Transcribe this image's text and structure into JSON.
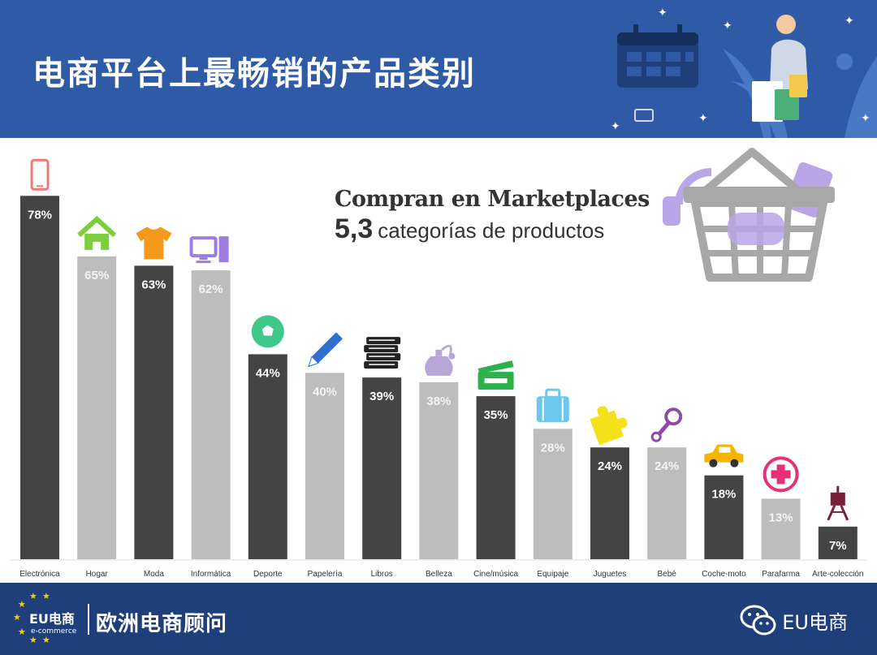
{
  "header": {
    "title": "电商平台上最畅销的产品类别"
  },
  "subtitle": {
    "line1": "Compran en Marketplaces",
    "number": "5,3",
    "rest": "categorías de productos"
  },
  "chart_data": {
    "type": "bar",
    "title": "",
    "xlabel": "",
    "ylabel": "",
    "ylim": [
      0,
      100
    ],
    "grid": false,
    "categories": [
      "Electrónica",
      "Hogar",
      "Moda",
      "Informática",
      "Deporte",
      "Papelería",
      "Libros",
      "Belleza",
      "Cine/música",
      "Equipaje",
      "Juguetes",
      "Bebé",
      "Coche-moto",
      "Parafarma",
      "Arte-colección"
    ],
    "values": [
      78,
      65,
      63,
      62,
      44,
      40,
      39,
      38,
      35,
      28,
      24,
      24,
      18,
      13,
      7
    ],
    "value_labels": [
      "78%",
      "65%",
      "63%",
      "62%",
      "44%",
      "40%",
      "39%",
      "38%",
      "35%",
      "28%",
      "24%",
      "24%",
      "18%",
      "13%",
      "7%"
    ],
    "bar_colors": [
      "#444444",
      "#bdbdbd",
      "#444444",
      "#bdbdbd",
      "#444444",
      "#bdbdbd",
      "#444444",
      "#bdbdbd",
      "#444444",
      "#bdbdbd",
      "#444444",
      "#bdbdbd",
      "#444444",
      "#bdbdbd",
      "#444444"
    ],
    "icons": [
      "smartphone-icon",
      "house-icon",
      "tshirt-icon",
      "computer-icon",
      "soccer-ball-icon",
      "pencil-icon",
      "books-icon",
      "perfume-icon",
      "clapperboard-icon",
      "suitcase-icon",
      "puzzle-icon",
      "rattle-icon",
      "car-icon",
      "first-aid-icon",
      "easel-icon"
    ],
    "icon_colors": [
      "#f07878",
      "#7ccf3a",
      "#f39a1c",
      "#9b7ee0",
      "#3ec98a",
      "#2f6fd0",
      "#222222",
      "#b7a7d6",
      "#2bb24c",
      "#6cc7ef",
      "#f5e11a",
      "#8e4ba3",
      "#f5b400",
      "#e8307a",
      "#7a1f3a"
    ]
  },
  "footer": {
    "left_text": "欧洲电商顾问",
    "right_text": "EU电商",
    "logo_main": "EU电商",
    "logo_sub": "e-commerce"
  },
  "colors": {
    "header_bg": "#2f5aa6",
    "footer_bg": "#1f3f7a",
    "dark_bar": "#444444",
    "light_bar": "#bdbdbd"
  }
}
